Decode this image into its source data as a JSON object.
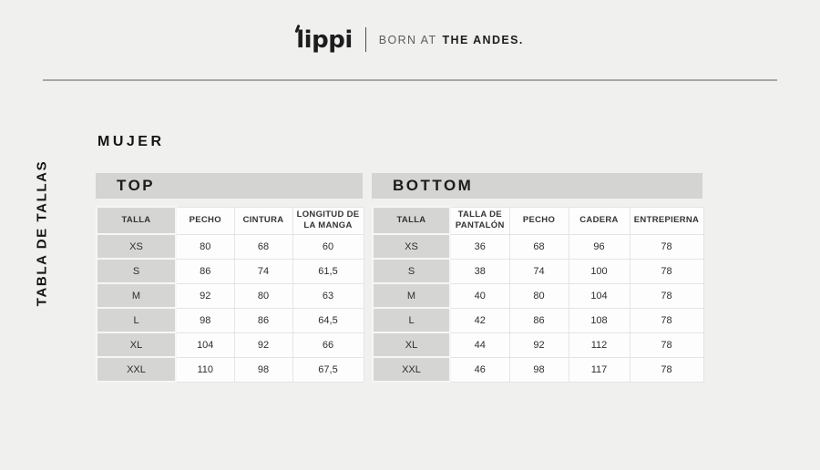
{
  "header": {
    "logo_text": "lippi",
    "tagline_regular": "BORN AT",
    "tagline_bold": "THE ANDES."
  },
  "sidebar_label": "TABLA DE TALLAS",
  "page": {
    "section_title": "MUJER"
  },
  "tables": {
    "top": {
      "title": "TOP",
      "columns": [
        "TALLA",
        "PECHO",
        "CINTURA",
        "LONGITUD DE LA MANGA"
      ],
      "rows": [
        [
          "XS",
          "80",
          "68",
          "60"
        ],
        [
          "S",
          "86",
          "74",
          "61,5"
        ],
        [
          "M",
          "92",
          "80",
          "63"
        ],
        [
          "L",
          "98",
          "86",
          "64,5"
        ],
        [
          "XL",
          "104",
          "92",
          "66"
        ],
        [
          "XXL",
          "110",
          "98",
          "67,5"
        ]
      ]
    },
    "bottom": {
      "title": "BOTTOM",
      "columns": [
        "TALLA",
        "TALLA DE PANTALÓN",
        "PECHO",
        "CADERA",
        "ENTREPIERNA"
      ],
      "rows": [
        [
          "XS",
          "36",
          "68",
          "96",
          "78"
        ],
        [
          "S",
          "38",
          "74",
          "100",
          "78"
        ],
        [
          "M",
          "40",
          "80",
          "104",
          "78"
        ],
        [
          "L",
          "42",
          "86",
          "108",
          "78"
        ],
        [
          "XL",
          "44",
          "92",
          "112",
          "78"
        ],
        [
          "XXL",
          "46",
          "98",
          "117",
          "78"
        ]
      ]
    }
  },
  "colors": {
    "page_background": "#f0f0ef",
    "section_bar_gray": "#d4d4d3",
    "size_column_gray": "#d5d5d4",
    "cell_white": "#fdfdfd",
    "cell_border": "#e4e4e3",
    "rule_gray": "#a6a6a6",
    "text_dark": "#1d1d1d",
    "tagline_gray": "#5d5d5d"
  }
}
